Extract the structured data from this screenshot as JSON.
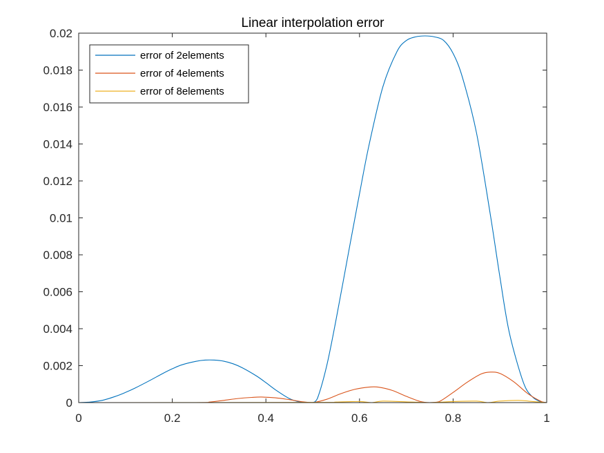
{
  "chart_data": {
    "type": "line",
    "title": "Linear interpolation error",
    "xlabel": "",
    "ylabel": "",
    "xlim": [
      0,
      1
    ],
    "ylim": [
      0,
      0.02
    ],
    "xticks": [
      0,
      0.2,
      0.4,
      0.6,
      0.8,
      1
    ],
    "xtick_labels": [
      "0",
      "0.2",
      "0.4",
      "0.6",
      "0.8",
      "1"
    ],
    "yticks": [
      0,
      0.002,
      0.004,
      0.006,
      0.008,
      0.01,
      0.012,
      0.014,
      0.016,
      0.018,
      0.02
    ],
    "ytick_labels": [
      "0",
      "0.002",
      "0.004",
      "0.006",
      "0.008",
      "0.01",
      "0.012",
      "0.014",
      "0.016",
      "0.018",
      "0.02"
    ],
    "grid": false,
    "legend": "top-left",
    "series": [
      {
        "name": "error of 2elements",
        "color": "#0072BD",
        "x": [
          0,
          0.02,
          0.05,
          0.08,
          0.1,
          0.12,
          0.15,
          0.18,
          0.2,
          0.22,
          0.25,
          0.27,
          0.29,
          0.31,
          0.33,
          0.35,
          0.38,
          0.4,
          0.42,
          0.45,
          0.47,
          0.49,
          0.5,
          0.51,
          0.53,
          0.55,
          0.58,
          0.6,
          0.62,
          0.65,
          0.68,
          0.7,
          0.72,
          0.74,
          0.76,
          0.78,
          0.8,
          0.82,
          0.85,
          0.88,
          0.9,
          0.92,
          0.95,
          0.97,
          0.99,
          1
        ],
        "y": [
          0,
          2e-05,
          0.00012,
          0.00035,
          0.00055,
          0.00078,
          0.00117,
          0.00158,
          0.00183,
          0.00204,
          0.00223,
          0.0023,
          0.0023,
          0.00224,
          0.0021,
          0.00188,
          0.00144,
          0.00108,
          0.0007,
          0.00022,
          5e-05,
          0.0,
          0.0,
          0.00022,
          0.002,
          0.0045,
          0.0086,
          0.0113,
          0.0139,
          0.0171,
          0.019,
          0.0196,
          0.0198,
          0.01985,
          0.0198,
          0.0196,
          0.0189,
          0.0176,
          0.0146,
          0.0101,
          0.0068,
          0.0038,
          0.0011,
          0.0003,
          2e-05,
          0
        ]
      },
      {
        "name": "error of 4elements",
        "color": "#D95319",
        "x": [
          0,
          0.25,
          0.28,
          0.31,
          0.34,
          0.37,
          0.39,
          0.42,
          0.45,
          0.48,
          0.5,
          0.53,
          0.56,
          0.59,
          0.62,
          0.64,
          0.67,
          0.7,
          0.73,
          0.75,
          0.77,
          0.8,
          0.83,
          0.86,
          0.88,
          0.9,
          0.93,
          0.96,
          0.99,
          1
        ],
        "y": [
          0,
          0.0,
          3e-05,
          0.00012,
          0.00022,
          0.00028,
          0.0003,
          0.00026,
          0.00016,
          4e-05,
          0,
          0.00018,
          0.00048,
          0.00072,
          0.00084,
          0.00084,
          0.00066,
          0.00034,
          6e-05,
          0,
          5e-05,
          0.00055,
          0.0011,
          0.00155,
          0.00165,
          0.00158,
          0.00112,
          0.00048,
          4e-05,
          0
        ]
      },
      {
        "name": "error of 8elements",
        "color": "#EDB120",
        "x": [
          0,
          0.5,
          0.55,
          0.6,
          0.625,
          0.65,
          0.7,
          0.75,
          0.8,
          0.85,
          0.875,
          0.9,
          0.94,
          0.97,
          1
        ],
        "y": [
          0,
          1e-05,
          3e-05,
          6e-05,
          0,
          8e-05,
          4e-05,
          0,
          6e-05,
          8e-05,
          0,
          8e-05,
          0.00012,
          6e-05,
          0
        ]
      }
    ]
  }
}
